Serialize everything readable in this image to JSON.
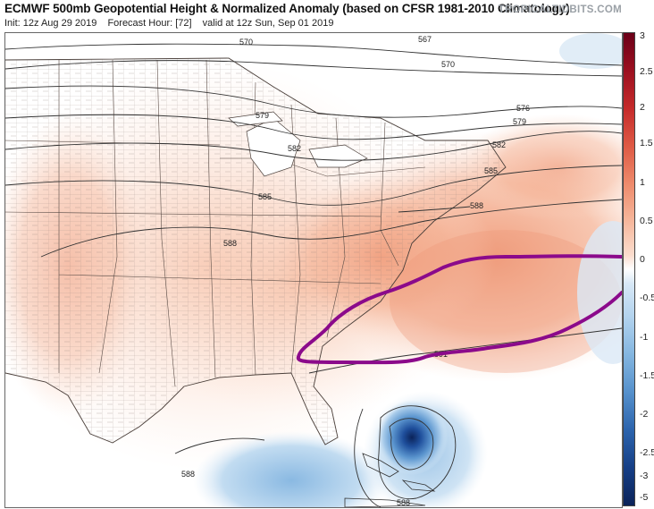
{
  "header": {
    "title": "ECMWF 500mb Geopotential Height & Normalized Anomaly (based on CFSR 1981-2010 Climatology)",
    "init": "Init: 12z Aug 29 2019",
    "forecast_hour": "Forecast Hour: [72]",
    "valid": "valid at 12z Sun, Sep 01 2019",
    "brand": "TROPICALTIDBITS.COM"
  },
  "colorbar": {
    "labels": [
      "3",
      "2.5",
      "2",
      "1.5",
      "1",
      "0.5",
      "0",
      "-0.5",
      "-1",
      "-1.5",
      "-2",
      "-2.5",
      "-3",
      "-5"
    ],
    "top_color": "#6b0018",
    "zero_color": "#ffffff",
    "bottom_color": "#0b2359"
  },
  "contours": {
    "labels": [
      "570",
      "567",
      "570",
      "579",
      "576",
      "579",
      "582",
      "582",
      "585",
      "585",
      "588",
      "588",
      "591",
      "588",
      "588"
    ]
  },
  "annotation": {
    "outline_color": "#8b0a8b"
  }
}
